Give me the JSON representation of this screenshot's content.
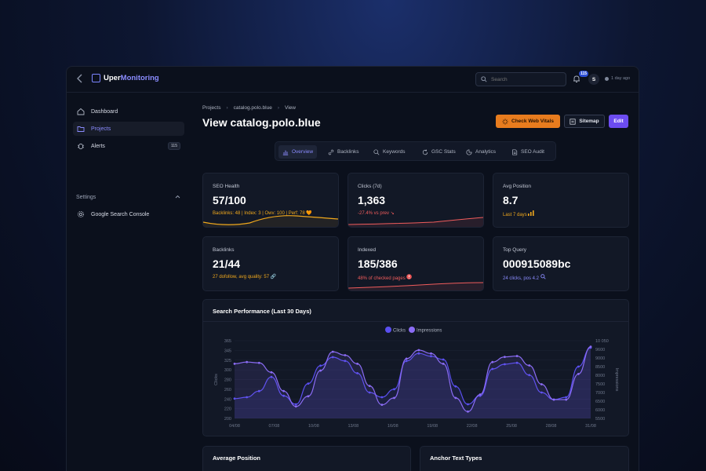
{
  "app": {
    "brand_first": "Uper",
    "brand_second": "Monitoring",
    "search_placeholder": "Search",
    "notification_count": "115",
    "avatar_initial": "S",
    "last_sync": "1 day ago"
  },
  "sidebar": {
    "items": [
      {
        "label": "Dashboard",
        "icon": "home-icon"
      },
      {
        "label": "Projects",
        "icon": "folder-icon"
      },
      {
        "label": "Alerts",
        "icon": "bug-icon",
        "badge": "115"
      }
    ],
    "settings_label": "Settings",
    "settings_items": [
      {
        "label": "Google Search Console",
        "icon": "gear-icon"
      }
    ]
  },
  "main": {
    "breadcrumb": [
      "Projects",
      "catalog.polo.blue",
      "View"
    ],
    "title": "View catalog.polo.blue",
    "buttons": {
      "check": "Check Web Vitals",
      "sitemap": "Sitemap",
      "edit": "Edit"
    },
    "tabs": [
      "Overview",
      "Backlinks",
      "Keywords",
      "GSC Stats",
      "Analytics",
      "SEO Audit"
    ],
    "cards": [
      {
        "label": "SEO Health",
        "value": "57/100",
        "sub": "Backlinks: 48 | Index: 3 | Owv: 100 | Perf: 78 🧡",
        "sub_color": "#f0a81c"
      },
      {
        "label": "Clicks (7d)",
        "value": "1,363",
        "sub": "-27.4% vs prev",
        "sub_color": "#f05c5c"
      },
      {
        "label": "Avg Position",
        "value": "8.7",
        "sub": "Last 7 days",
        "sub_color": "#f0a81c"
      },
      {
        "label": "Backlinks",
        "value": "21/44",
        "sub": "27 dofollow, avg quality: 57",
        "sub_color": "#f0a81c"
      },
      {
        "label": "Indexed",
        "value": "185/386",
        "sub": "48% of checked pages",
        "sub_color": "#f05c5c"
      },
      {
        "label": "Top Query",
        "value": "000915089bc",
        "sub": "24 clicks, pos 4.2",
        "sub_color": "#8b8cff"
      }
    ],
    "bottom_cards": [
      "Average Position",
      "Anchor Text Types"
    ]
  },
  "chart_data": {
    "type": "line",
    "title": "Search Performance (Last 30 Days)",
    "legend": [
      "Clicks",
      "Impressions"
    ],
    "legend_position": "top-center",
    "ylabel": "Clicks",
    "ylabel_right": "Impressions",
    "x_ticks": [
      "04/08",
      "07/08",
      "10/08",
      "13/08",
      "16/08",
      "19/08",
      "22/08",
      "25/08",
      "28/08",
      "31/08"
    ],
    "y_ticks_left": [
      "365",
      "345",
      "325",
      "300",
      "280",
      "260",
      "240",
      "220",
      "200"
    ],
    "y_ticks_right": [
      "10 050",
      "9600",
      "9000",
      "8500",
      "8000",
      "7500",
      "7000",
      "6500",
      "6000",
      "5500"
    ],
    "ylim_left": [
      200,
      365
    ],
    "ylim_right": [
      5500,
      10050
    ],
    "series": [
      {
        "name": "Clicks",
        "color": "#5a4ff0",
        "values": [
          242,
          245,
          258,
          288,
          248,
          230,
          274,
          312,
          330,
          322,
          296,
          255,
          245,
          262,
          322,
          338,
          332,
          325,
          268,
          230,
          248,
          305,
          315,
          318,
          292,
          255,
          240,
          245,
          310,
          350
        ]
      },
      {
        "name": "Impressions",
        "color": "#8b6cf5",
        "values": [
          8700,
          8800,
          8750,
          8200,
          7100,
          6200,
          6800,
          8300,
          9400,
          9200,
          8700,
          7400,
          6300,
          6700,
          9000,
          9500,
          9300,
          8700,
          6700,
          5900,
          6900,
          8800,
          9100,
          9150,
          8600,
          7500,
          6600,
          6600,
          8100,
          9700
        ]
      }
    ]
  }
}
